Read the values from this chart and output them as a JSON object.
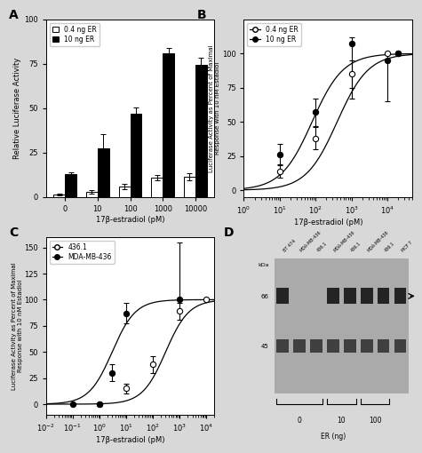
{
  "panel_A": {
    "label": "A",
    "categories": [
      0,
      10,
      100,
      1000,
      10000
    ],
    "white_bars": [
      1.5,
      3.0,
      6.0,
      11.0,
      11.5
    ],
    "white_errs": [
      0.5,
      1.0,
      1.5,
      1.5,
      2.0
    ],
    "black_bars": [
      13.0,
      27.5,
      47.0,
      81.0,
      74.5
    ],
    "black_errs": [
      1.0,
      8.0,
      3.5,
      3.0,
      4.0
    ],
    "ylabel": "Relative Luciferase Activity",
    "xlabel": "17β-estradiol (pM)",
    "ylim": [
      0,
      100
    ],
    "legend_labels": [
      "0.4 ng ER",
      "10 ng ER"
    ]
  },
  "panel_B": {
    "label": "B",
    "x_open": [
      10,
      100,
      1000,
      10000,
      20000
    ],
    "y_open": [
      14,
      38,
      85,
      100,
      100
    ],
    "yerr_open_lo": [
      5,
      8,
      10,
      0,
      0
    ],
    "yerr_open_hi": [
      5,
      8,
      10,
      0,
      0
    ],
    "x_filled": [
      10,
      100,
      1000,
      10000,
      20000
    ],
    "y_filled": [
      26,
      57,
      107,
      95,
      100
    ],
    "yerr_filled_lo": [
      8,
      10,
      40,
      30,
      0
    ],
    "yerr_filled_hi": [
      8,
      10,
      5,
      5,
      0
    ],
    "xlabel": "17β-estradiol (pM)",
    "ylabel": "Luciferase Activity as Percent of Maximal\nResponse with 10 nM Estadiol",
    "ylim": [
      -5,
      125
    ],
    "xlim_log": [
      1,
      50000
    ],
    "legend_labels": [
      "0.4 ng ER",
      "10 ng ER"
    ],
    "ec50_open": 400,
    "ec50_filled": 80
  },
  "panel_C": {
    "label": "C",
    "x_open": [
      1,
      10,
      100,
      1000,
      10000
    ],
    "y_open": [
      0,
      15,
      38,
      89,
      100
    ],
    "yerr_open_lo": [
      0,
      5,
      8,
      8,
      0
    ],
    "yerr_open_hi": [
      0,
      5,
      8,
      8,
      0
    ],
    "x_filled": [
      0.1,
      1,
      3,
      10,
      1000
    ],
    "y_filled": [
      0,
      0,
      30,
      87,
      100
    ],
    "yerr_filled_lo": [
      0,
      0,
      8,
      10,
      0
    ],
    "yerr_filled_hi": [
      0,
      0,
      8,
      10,
      55
    ],
    "xlabel": "17β-estradiol (pM)",
    "ylabel": "Luciferase Activity as Percent of Maximal\nResponse with 10 nM Estadiol",
    "ylim": [
      -10,
      160
    ],
    "xlim_log": [
      0.01,
      20000
    ],
    "legend_labels": [
      "436.1",
      "MDA-MB-436"
    ],
    "ec50_open": 300,
    "ec50_filled": 3
  },
  "panel_D": {
    "label": "D",
    "lane_labels": [
      "BT 474",
      "MDA-MB-436",
      "436.1",
      "MDA-MB-436",
      "436.1",
      "MDA-MB-436",
      "436.1",
      "MCF 7"
    ],
    "kda_upper": "66",
    "kda_lower": "45",
    "bracket_groups": [
      {
        "label": "0",
        "lanes": [
          0,
          1
        ]
      },
      {
        "label": "10",
        "lanes": [
          2,
          3
        ]
      },
      {
        "label": "100",
        "lanes": [
          4,
          5
        ]
      }
    ],
    "er_label": "ER (ng)"
  },
  "fig_bg": "#d8d8d8",
  "panel_bg": "#ffffff"
}
